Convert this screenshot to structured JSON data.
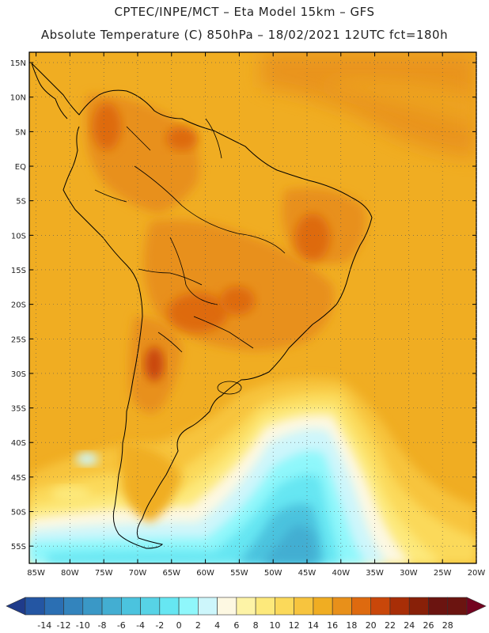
{
  "header": {
    "line1": "CPTEC/INPE/MCT –   Eta Model 15km – GFS",
    "line2": "Absolute Temperature (C) 850hPa – 18/02/2021 12UTC fct=180h"
  },
  "map": {
    "lat_labels": [
      "15N",
      "10N",
      "5N",
      "EQ",
      "5S",
      "10S",
      "15S",
      "20S",
      "25S",
      "30S",
      "35S",
      "40S",
      "45S",
      "50S",
      "55S"
    ],
    "lon_labels": [
      "85W",
      "80W",
      "75W",
      "70W",
      "65W",
      "60W",
      "55W",
      "50W",
      "45W",
      "40W",
      "35W",
      "30W",
      "25W",
      "20W"
    ],
    "lat_range": [
      -57.5,
      16.5
    ],
    "lon_range": [
      -86,
      -20
    ]
  },
  "colorbar": {
    "ticks": [
      "-14",
      "-12",
      "-10",
      "-8",
      "-6",
      "-4",
      "-2",
      "0",
      "2",
      "4",
      "6",
      "8",
      "10",
      "12",
      "14",
      "16",
      "18",
      "20",
      "22",
      "24",
      "26",
      "28"
    ],
    "colors": [
      "#1f3b8a",
      "#2456a3",
      "#2b6fb3",
      "#3384bd",
      "#3a98c6",
      "#43aed2",
      "#4bc3de",
      "#57d3e6",
      "#66e6f2",
      "#8ff7fb",
      "#cdf6fb",
      "#fdf8e2",
      "#fdf3a6",
      "#fde97b",
      "#fbd95a",
      "#f7c43e",
      "#f0ad22",
      "#e8901a",
      "#de6a0f",
      "#c9470a",
      "#a82e07",
      "#882008",
      "#6b1410",
      "#730420"
    ]
  }
}
